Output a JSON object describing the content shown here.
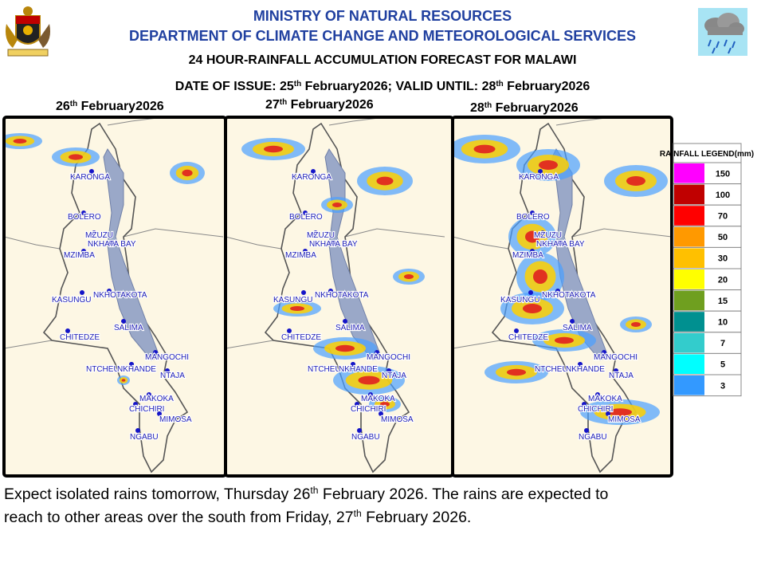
{
  "header": {
    "ministry": "MINISTRY OF NATURAL RESOURCES",
    "department": "DEPARTMENT OF CLIMATE CHANGE AND METEOROLOGICAL SERVICES",
    "title": "24 HOUR-RAINFALL ACCUMULATION FORECAST FOR MALAWI",
    "issue": [
      "DATE OF ISSUE: 25",
      "th",
      " February2026; VALID UNTIL: 28",
      "th",
      " February2026"
    ]
  },
  "panels": [
    {
      "date": [
        "26",
        "th",
        " February2026"
      ]
    },
    {
      "date": [
        "27",
        "th",
        " February2026"
      ]
    },
    {
      "date": [
        "28",
        "th",
        " February2026"
      ]
    }
  ],
  "places": [
    "KARONGA",
    "BOLERO",
    "MZUZU",
    "NKHATA BAY",
    "MZIMBA",
    "NKHOTAKOTA",
    "KASUNGU",
    "SALIMA",
    "CHITEDZE",
    "MANGOCHI",
    "NTCHEU",
    "NKHANDE",
    "NTAJA",
    "MAKOKA",
    "CHICHIRI",
    "MIMOSA",
    "NGABU"
  ],
  "legend": {
    "title": "RAINFALL LEGEND(mm)",
    "items": [
      {
        "label": "150",
        "color": "#ff00ff"
      },
      {
        "label": "100",
        "color": "#c00000"
      },
      {
        "label": "70",
        "color": "#ff0000"
      },
      {
        "label": "50",
        "color": "#ff9900"
      },
      {
        "label": "30",
        "color": "#ffc000"
      },
      {
        "label": "20",
        "color": "#ffff00"
      },
      {
        "label": "15",
        "color": "#6f9f1f"
      },
      {
        "label": "10",
        "color": "#009090"
      },
      {
        "label": "7",
        "color": "#33cccc"
      },
      {
        "label": "5",
        "color": "#00ffff"
      },
      {
        "label": "3",
        "color": "#3399ff"
      }
    ]
  },
  "message": {
    "lines": [
      [
        "Expect isolated rains tomorrow, Thursday 26",
        "th",
        " February 2026. The rains are expected to"
      ],
      [
        "reach to other areas over the south from Friday, 27",
        "th",
        " February 2026."
      ]
    ]
  }
}
